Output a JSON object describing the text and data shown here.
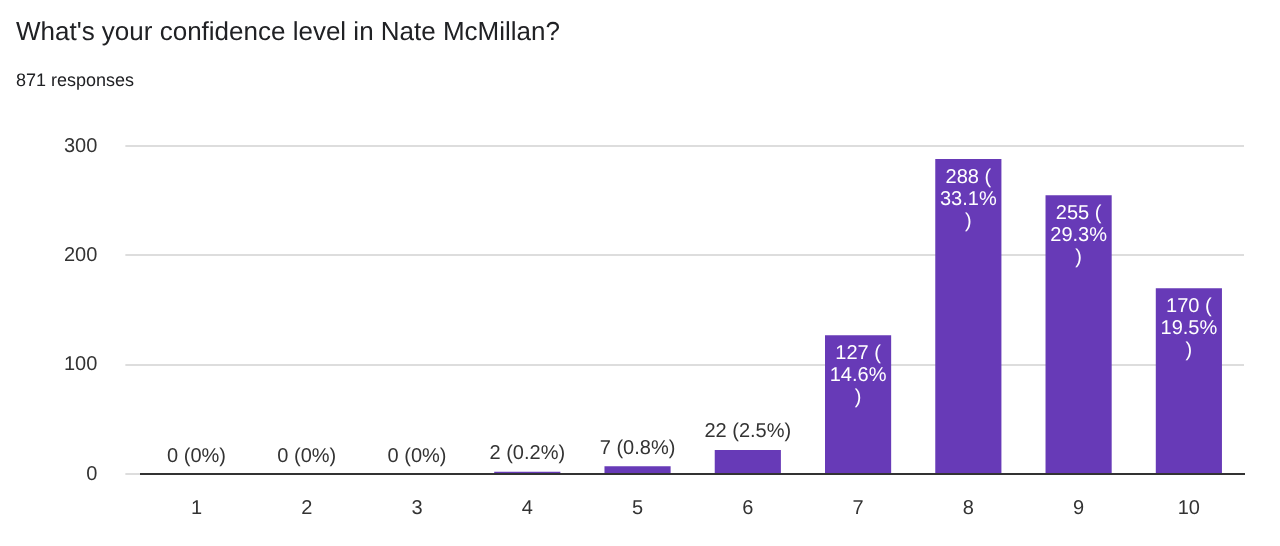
{
  "chart_data": {
    "type": "bar",
    "title": "What's your confidence level in Nate McMillan?",
    "subtitle": "871 responses",
    "categories": [
      "1",
      "2",
      "3",
      "4",
      "5",
      "6",
      "7",
      "8",
      "9",
      "10"
    ],
    "values": [
      0,
      0,
      0,
      2,
      7,
      22,
      127,
      288,
      255,
      170
    ],
    "value_labels": [
      "0 (0%)",
      "0 (0%)",
      "0 (0%)",
      "2 (0.2%)",
      "7 (0.8%)",
      "22 (2.5%)",
      "127 (14.6%)",
      "288 (33.1%)",
      "255 (29.3%)",
      "170 (19.5%)"
    ],
    "color": "#673ab7",
    "ylim": [
      0,
      300
    ],
    "yticks": [
      0,
      100,
      200,
      300
    ],
    "grid": "y"
  }
}
